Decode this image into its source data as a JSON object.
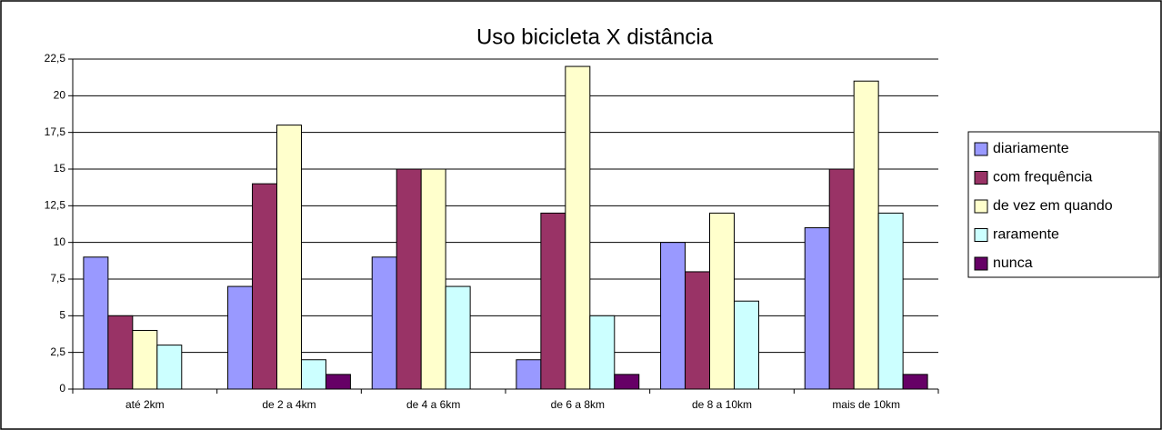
{
  "chart_data": {
    "type": "bar",
    "title": "Uso bicicleta X distância",
    "categories": [
      "até 2km",
      "de 2 a 4km",
      "de 4 a 6km",
      "de 6 a 8km",
      "de 8 a 10km",
      "mais de 10km"
    ],
    "series": [
      {
        "name": "diariamente",
        "color": "#9999ff",
        "values": [
          9,
          7,
          9,
          2,
          10,
          11
        ]
      },
      {
        "name": "com frequência",
        "color": "#993366",
        "values": [
          5,
          14,
          15,
          12,
          8,
          15
        ]
      },
      {
        "name": "de vez em quando",
        "color": "#ffffcc",
        "values": [
          4,
          18,
          15,
          22,
          12,
          21
        ]
      },
      {
        "name": "raramente",
        "color": "#ccffff",
        "values": [
          3,
          2,
          7,
          5,
          6,
          12
        ]
      },
      {
        "name": "nunca",
        "color": "#660066",
        "values": [
          0,
          1,
          0,
          1,
          0,
          1
        ]
      }
    ],
    "ylim": [
      0,
      22.5
    ],
    "yticks": [
      0,
      {
        "value": 2.5,
        "label": "2,5"
      },
      5,
      {
        "value": 7.5,
        "label": "7,5"
      },
      10,
      {
        "value": 12.5,
        "label": "12,5"
      },
      15,
      {
        "value": 17.5,
        "label": "17,5"
      },
      20,
      {
        "value": 22.5,
        "label": "22,5"
      }
    ],
    "grid": true,
    "legend": "right"
  }
}
